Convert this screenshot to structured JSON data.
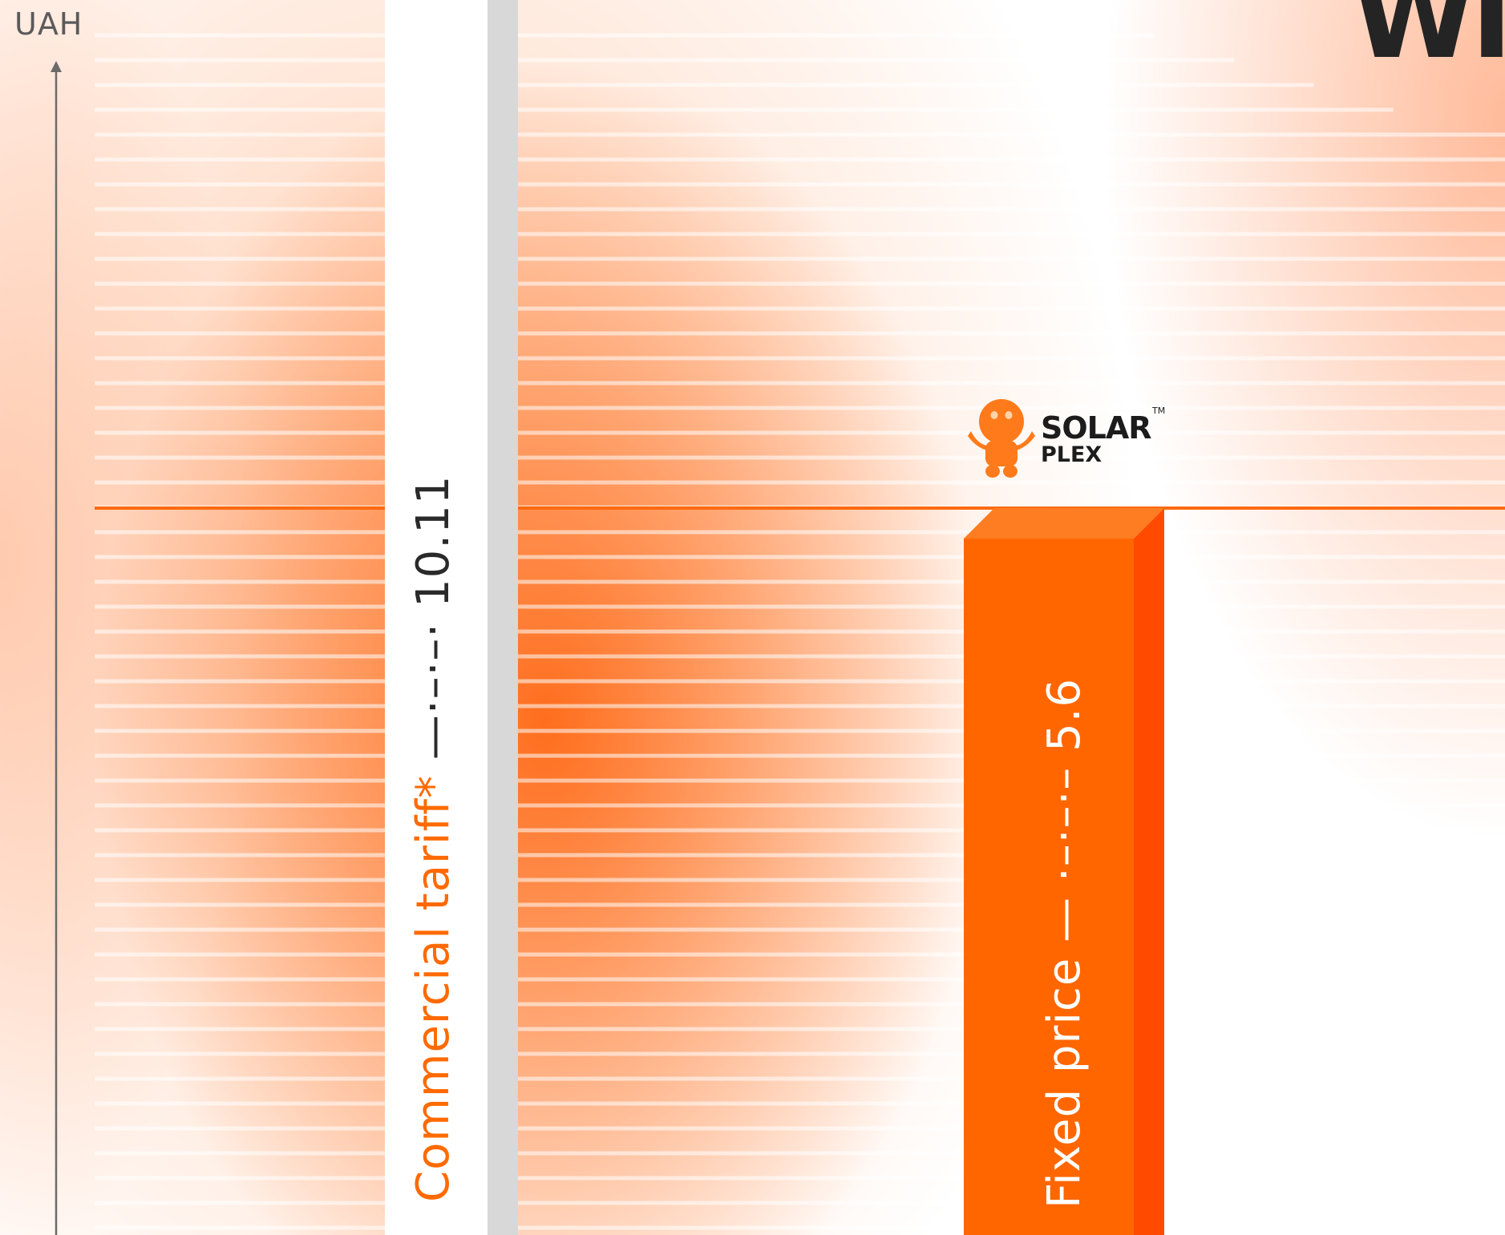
{
  "chart_data": {
    "type": "bar",
    "categories": [
      "Commercial tariff*",
      "Fixed price"
    ],
    "values": [
      10.11,
      5.6
    ],
    "ylabel": "UAH",
    "ylim": [
      0,
      16
    ],
    "grid": true,
    "reference_line": {
      "value": 5.6
    },
    "data_labels": [
      {
        "name": "Commercial tariff*",
        "leader": " —·–·–· ",
        "value": "10.11"
      },
      {
        "name": "Fixed price",
        "leader": " — ·–·–·– ",
        "value": "5.6"
      }
    ],
    "colors": {
      "commercial_bar": "#ffffff",
      "commercial_side": "#d8d8d8",
      "fixed_bar": "#ff6600",
      "fixed_side": "#ff4a00",
      "reference_line": "#ff6a10"
    }
  },
  "brand": {
    "line1": "SOLAR",
    "line2": "PLEX",
    "tm": "TM",
    "icon": "mascot-icon",
    "color": "#ff7a1a"
  },
  "corner_text": "WI"
}
